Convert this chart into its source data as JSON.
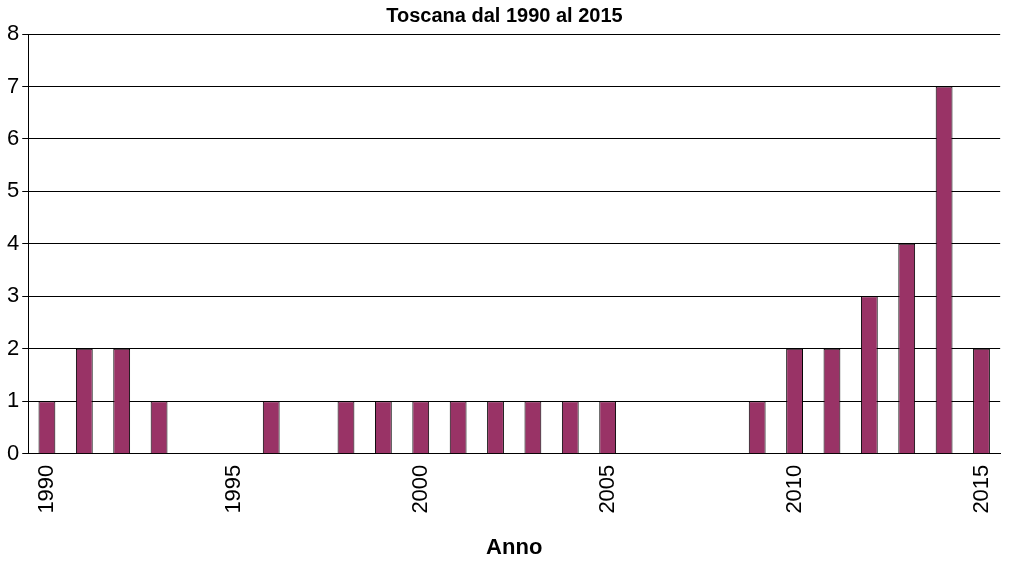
{
  "chart_data": {
    "type": "bar",
    "title": "Toscana dal 1990 al 2015",
    "xlabel": "Anno",
    "categories": [
      "1990",
      null,
      null,
      null,
      null,
      "1995",
      null,
      null,
      null,
      null,
      "2000",
      null,
      null,
      null,
      null,
      "2005",
      null,
      null,
      null,
      null,
      "2010",
      null,
      null,
      null,
      null,
      "2015"
    ],
    "values": [
      1,
      2,
      2,
      1,
      0,
      0,
      1,
      0,
      1,
      1,
      1,
      1,
      1,
      1,
      1,
      1,
      0,
      0,
      0,
      1,
      2,
      2,
      3,
      4,
      7,
      2
    ],
    "color": "#993366",
    "ylim": [
      0,
      8
    ],
    "yticks": [
      0,
      1,
      2,
      3,
      4,
      5,
      6,
      7,
      8
    ],
    "grid": "y",
    "legend": false
  }
}
